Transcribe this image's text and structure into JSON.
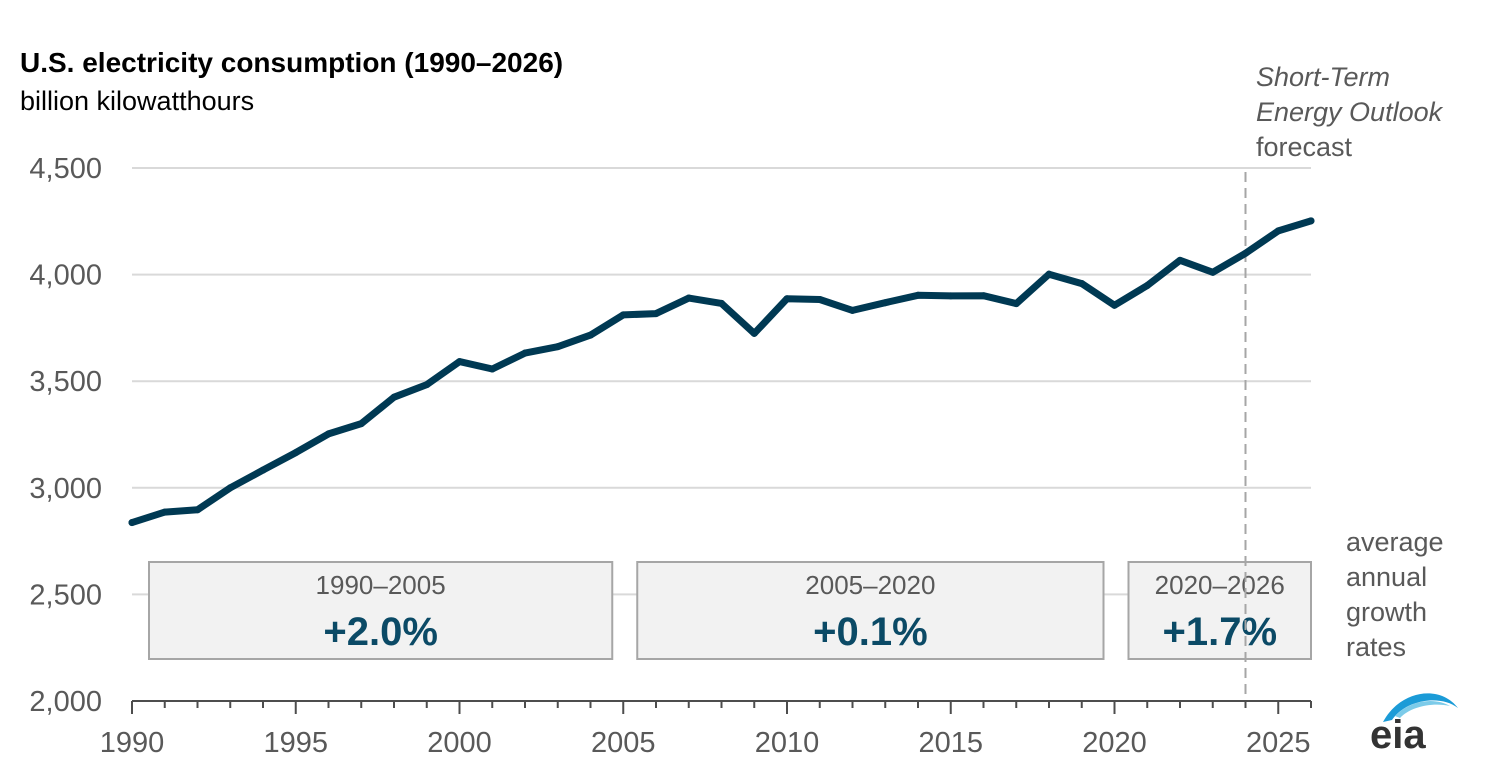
{
  "chart_data": {
    "type": "line",
    "title": "U.S. electricity consumption (1990–2026)",
    "subtitle": "billion kilowatthours",
    "xlabel": "",
    "ylabel": "",
    "xlim": [
      1990,
      2026
    ],
    "ylim": [
      2000,
      4500
    ],
    "yticks": [
      2000,
      2500,
      3000,
      3500,
      4000,
      4500
    ],
    "ytick_labels": [
      "2,000",
      "2,500",
      "3,000",
      "3,500",
      "4,000",
      "4,500"
    ],
    "xticks": [
      1990,
      1995,
      2000,
      2005,
      2010,
      2015,
      2020,
      2025
    ],
    "xtick_labels": [
      "1990",
      "1995",
      "2000",
      "2005",
      "2010",
      "2015",
      "2020",
      "2025"
    ],
    "grid": "horizontal",
    "forecast_start": 2024,
    "forecast_label": [
      "Short-Term",
      "Energy Outlook",
      "forecast"
    ],
    "x": [
      1990,
      1991,
      1992,
      1993,
      1994,
      1995,
      1996,
      1997,
      1998,
      1999,
      2000,
      2001,
      2002,
      2003,
      2004,
      2005,
      2006,
      2007,
      2008,
      2009,
      2010,
      2011,
      2012,
      2013,
      2014,
      2015,
      2016,
      2017,
      2018,
      2019,
      2020,
      2021,
      2022,
      2023,
      2024,
      2025,
      2026
    ],
    "values": [
      2837,
      2886,
      2897,
      3000,
      3083,
      3165,
      3253,
      3301,
      3425,
      3484,
      3592,
      3557,
      3632,
      3662,
      3716,
      3811,
      3817,
      3890,
      3865,
      3724,
      3887,
      3883,
      3832,
      3868,
      3903,
      3900,
      3901,
      3864,
      4002,
      3958,
      3856,
      3949,
      4067,
      4011,
      4100,
      4205,
      4252
    ],
    "growth_rates": [
      {
        "period": "1990–2005",
        "value": "+2.0%",
        "start": 1990,
        "end": 2005
      },
      {
        "period": "2005–2020",
        "value": "+0.1%",
        "start": 2005,
        "end": 2020
      },
      {
        "period": "2020–2026",
        "value": "+1.7%",
        "start": 2020,
        "end": 2026
      }
    ],
    "growth_note": [
      "average",
      "annual",
      "growth",
      "rates"
    ],
    "colors": {
      "line": "#003953",
      "grid": "#d9d9d9",
      "axis": "#4d4d4d",
      "forecast": "#a6a6a6",
      "box_fill": "#f2f2f2",
      "box_stroke": "#a6a6a6",
      "rate_text": "#0b4a66"
    }
  },
  "logo_text": "eia"
}
